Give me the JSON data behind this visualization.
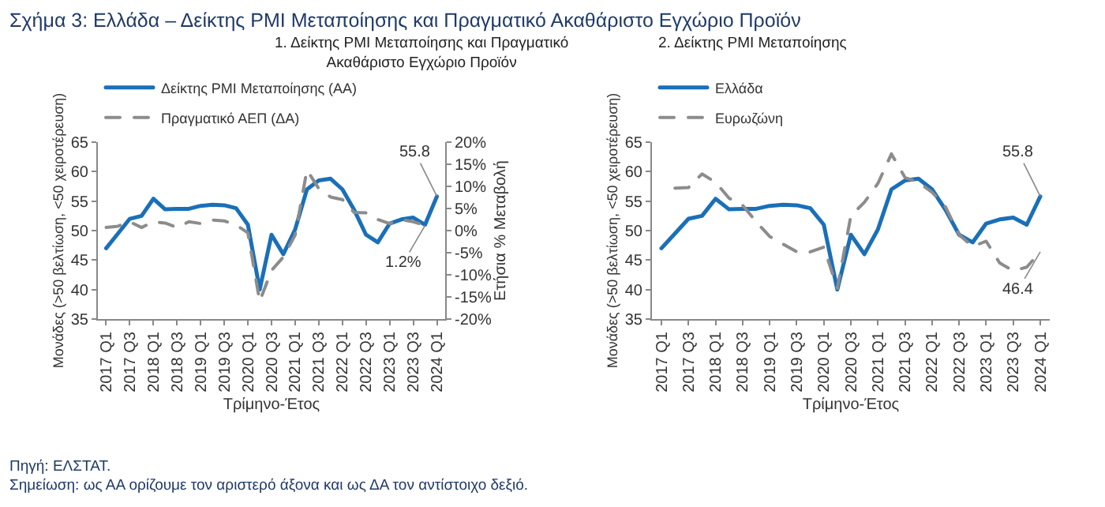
{
  "chart_data": [
    {
      "type": "line",
      "title": "1. Δείκτης PMI Μεταποίησης και Πραγματικό Ακαθάριστο Εγχώριο Προϊόν",
      "xlabel": "Τρίμηνο-Έτος",
      "ylabel": "Μονάδες (>50 βελτίωση, <50 χειροτέρευση)",
      "y2label": "Ετήσια % Μεταβολή",
      "categories": [
        "2017 Q1",
        null,
        "2017 Q3",
        null,
        "2018 Q1",
        null,
        "2018 Q3",
        null,
        "2019 Q1",
        null,
        "2019 Q3",
        null,
        "2020 Q1",
        null,
        "2020 Q3",
        null,
        "2021 Q1",
        null,
        "2021 Q3",
        null,
        "2022 Q1",
        null,
        "2022 Q3",
        null,
        "2023 Q1",
        null,
        "2023 Q3",
        null,
        "2024 Q1"
      ],
      "series": [
        {
          "name": "Δείκτης PMI Μεταποίησης (ΑΑ)",
          "color": "#1a6fb8",
          "line_style": "solid",
          "values": [
            47,
            49.5,
            52,
            52.5,
            55.4,
            53.6,
            53.7,
            53.7,
            54.2,
            54.4,
            54.3,
            53.8,
            51,
            40,
            49.3,
            46,
            50.2,
            57,
            58.5,
            58.8,
            57,
            53.5,
            49.3,
            48,
            51.2,
            51.9,
            52.2,
            51,
            55.8
          ],
          "value_labels": [
            null,
            null,
            null,
            null,
            null,
            null,
            null,
            null,
            null,
            null,
            null,
            null,
            null,
            null,
            null,
            null,
            null,
            null,
            null,
            null,
            null,
            null,
            null,
            null,
            null,
            null,
            null,
            null,
            "55.8"
          ]
        },
        {
          "name": "Πραγματικό ΑΕΠ (ΔΑ)",
          "color": "#8c8c8c",
          "line_style": "dashed",
          "axis": "y2",
          "values": [
            0.7,
            1,
            2,
            0.7,
            2,
            1.7,
            0.7,
            2,
            1.6,
            2.4,
            2.2,
            1.3,
            -0.5,
            -16,
            -9,
            -6,
            -1,
            13.7,
            9.5,
            7.6,
            7,
            4.1,
            4,
            2.5,
            1.6,
            2.5,
            2,
            1.2,
            null
          ],
          "value_labels": [
            null,
            null,
            null,
            null,
            null,
            null,
            null,
            null,
            null,
            null,
            null,
            null,
            null,
            null,
            null,
            null,
            null,
            null,
            null,
            null,
            null,
            null,
            null,
            null,
            null,
            null,
            null,
            "1.2%",
            null
          ]
        }
      ],
      "ylim": [
        35,
        65
      ],
      "yticks": [
        35,
        40,
        45,
        50,
        55,
        60,
        65
      ],
      "y2lim": [
        -20,
        20
      ],
      "y2ticks": [
        {
          "value": -20,
          "label": "-20%"
        },
        {
          "value": -15,
          "label": "-15%"
        },
        {
          "value": -10,
          "label": "-10%"
        },
        {
          "value": -5,
          "label": "-5%"
        },
        {
          "value": 0,
          "label": "0%"
        },
        {
          "value": 5,
          "label": "5%"
        },
        {
          "value": 10,
          "label": "10%"
        },
        {
          "value": 15,
          "label": "15%"
        },
        {
          "value": 20,
          "label": "20%"
        }
      ],
      "legend": "top left",
      "annotations": [
        "Σχήμα 3: Ελλάδα – Δείκτης PMI Μεταποίησης και Πραγματικό Ακαθάριστο Εγχώριο Προϊόν",
        "Πηγή: ΕΛΣΤΑΤ.",
        "Σημείωση: ως ΑΑ ορίζουμε τον αριστερό άξονα και ως ΔΑ τον αντίστοιχο δεξιό."
      ]
    },
    {
      "type": "line",
      "title": "2. Δείκτης PMI Μεταποίησης",
      "xlabel": "Τρίμηνο-Έτος",
      "ylabel": "Μονάδες (>50 βελτίωση, <50 χειροτέρευση)",
      "categories": [
        "2017 Q1",
        null,
        "2017 Q3",
        null,
        "2018 Q1",
        null,
        "2018 Q3",
        null,
        "2019 Q1",
        null,
        "2019 Q3",
        null,
        "2020 Q1",
        null,
        "2020 Q3",
        null,
        "2021 Q1",
        null,
        "2021 Q3",
        null,
        "2022 Q1",
        null,
        "2022 Q3",
        null,
        "2023 Q1",
        null,
        "2023 Q3",
        null,
        "2024 Q1"
      ],
      "series": [
        {
          "name": "Ελλάδα",
          "color": "#1a6fb8",
          "line_style": "solid",
          "values": [
            47,
            49.5,
            52,
            52.5,
            55.4,
            53.6,
            53.7,
            53.7,
            54.2,
            54.4,
            54.3,
            53.8,
            51,
            40,
            49.3,
            46,
            50.2,
            57,
            58.5,
            58.8,
            57,
            53.5,
            49.3,
            48,
            51.2,
            51.9,
            52.2,
            51,
            55.8
          ],
          "value_labels": [
            null,
            null,
            null,
            null,
            null,
            null,
            null,
            null,
            null,
            null,
            null,
            null,
            null,
            null,
            null,
            null,
            null,
            null,
            null,
            null,
            null,
            null,
            null,
            null,
            null,
            null,
            null,
            null,
            "55.8"
          ]
        },
        {
          "name": "Ευρωζώνη",
          "color": "#8c8c8c",
          "line_style": "dashed",
          "values": [
            null,
            57.2,
            57.3,
            59.6,
            58.2,
            55.5,
            54.3,
            51.5,
            49,
            47.7,
            46.4,
            46.4,
            47.2,
            40.2,
            52.5,
            54.8,
            58,
            63,
            59,
            58.2,
            56.5,
            54,
            49.3,
            47.3,
            48.2,
            44.5,
            43.2,
            43.8,
            46.4
          ],
          "value_labels": [
            null,
            null,
            null,
            null,
            null,
            null,
            null,
            null,
            null,
            null,
            null,
            null,
            null,
            null,
            null,
            null,
            null,
            null,
            null,
            null,
            null,
            null,
            null,
            null,
            null,
            null,
            null,
            null,
            "46.4"
          ]
        }
      ],
      "ylim": [
        35,
        65
      ],
      "yticks": [
        35,
        40,
        45,
        50,
        55,
        60,
        65
      ],
      "legend": "top left"
    }
  ]
}
